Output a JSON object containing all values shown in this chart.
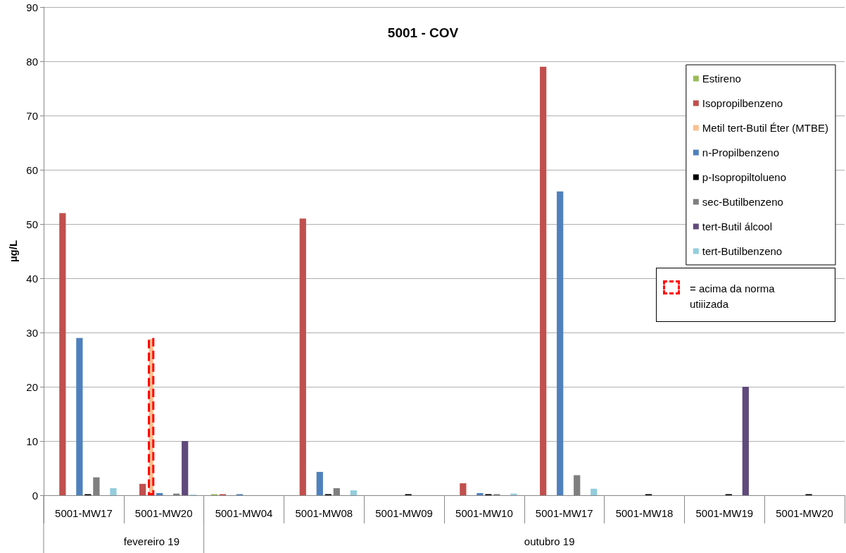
{
  "chart_data": {
    "type": "bar",
    "title": "5001 - COV",
    "ylabel": "µg/L",
    "categories": [
      "5001-MW17",
      "5001-MW20",
      "5001-MW04",
      "5001-MW08",
      "5001-MW09",
      "5001-MW10",
      "5001-MW17",
      "5001-MW18",
      "5001-MW19",
      "5001-MW20"
    ],
    "series": [
      {
        "name": "Estireno",
        "color": "#9bbb59",
        "values": [
          null,
          null,
          0.2,
          null,
          null,
          null,
          null,
          null,
          null,
          null
        ]
      },
      {
        "name": "Isopropilbenzeno",
        "color": "#c0504d",
        "values": [
          52,
          2.1,
          0.2,
          51,
          null,
          2.2,
          79,
          null,
          null,
          null
        ]
      },
      {
        "name": "Metil tert-Butil Éter (MTBE)",
        "color": "#fac090",
        "line_style": "dashed",
        "values": [
          null,
          29,
          null,
          null,
          null,
          null,
          null,
          null,
          null,
          null
        ]
      },
      {
        "name": "n-Propilbenzeno",
        "color": "#4f81bd",
        "values": [
          29,
          0.4,
          0.2,
          4.3,
          null,
          0.4,
          56,
          null,
          null,
          null
        ]
      },
      {
        "name": "p-Isopropiltolueno",
        "color": "#000000",
        "values": [
          0.2,
          null,
          null,
          0.2,
          0.2,
          0.2,
          null,
          0.2,
          0.2,
          0.2
        ]
      },
      {
        "name": "sec-Butilbenzeno",
        "color": "#7f7f7f",
        "values": [
          3.3,
          0.3,
          null,
          1.3,
          null,
          0.2,
          3.7,
          null,
          null,
          null
        ]
      },
      {
        "name": "tert-Butil álcool",
        "color": "#604a7b",
        "values": [
          null,
          10,
          null,
          null,
          null,
          null,
          null,
          null,
          20,
          null
        ]
      },
      {
        "name": "tert-Butilbenzeno",
        "color": "#93cddd",
        "values": [
          1.3,
          0.1,
          null,
          0.9,
          null,
          0.3,
          1.2,
          null,
          null,
          null
        ]
      }
    ],
    "annotations": [
      "fevereiro 19",
      "outubro 19",
      "= acima da norma utiiizada"
    ],
    "ylim": [
      0,
      90
    ],
    "yticks": [
      0,
      10,
      20,
      30,
      40,
      50,
      60,
      70,
      80,
      90
    ],
    "grid": "y",
    "legend": "right"
  }
}
